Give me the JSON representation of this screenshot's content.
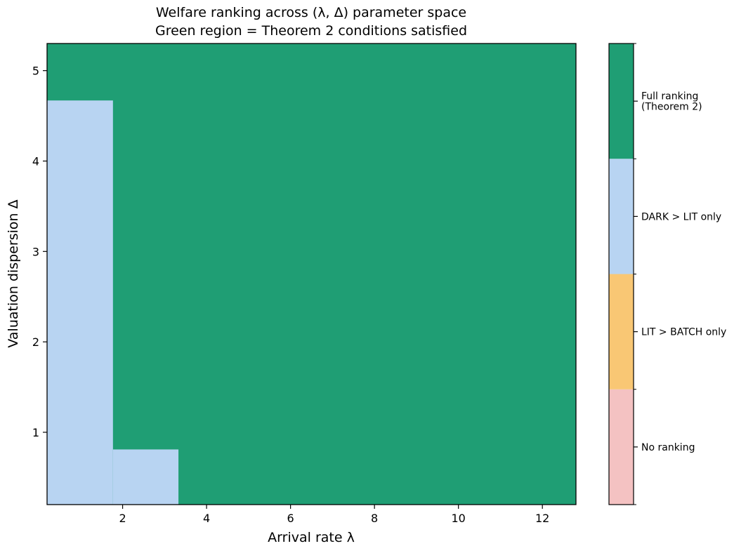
{
  "chart_data": {
    "type": "heatmap",
    "title_line1": "Welfare ranking across (λ, Δ) parameter space",
    "title_line2": "Green region = Theorem 2 conditions satisfied",
    "xlabel": "Arrival rate λ",
    "ylabel": "Valuation dispersion Δ",
    "xlim": [
      0.2,
      12.8
    ],
    "ylim": [
      0.2,
      5.3
    ],
    "x_ticks": [
      2,
      4,
      6,
      8,
      10,
      12
    ],
    "y_ticks": [
      1,
      2,
      3,
      4,
      5
    ],
    "grid": false,
    "categories": [
      {
        "value": 0,
        "label": "No ranking",
        "color": "#f4c2c2"
      },
      {
        "value": 1,
        "label": "LIT > BATCH only",
        "color": "#f9c774"
      },
      {
        "value": 2,
        "label": "DARK > LIT only",
        "color": "#b8d4f2"
      },
      {
        "value": 3,
        "label": "Full ranking (Theorem 2)",
        "color": "#1f9e74"
      }
    ],
    "regions": [
      {
        "x": [
          0.2,
          12.8
        ],
        "y": [
          0.2,
          5.3
        ],
        "category": 3
      },
      {
        "x": [
          0.2,
          1.77
        ],
        "y": [
          0.2,
          4.67
        ],
        "category": 2
      },
      {
        "x": [
          1.77,
          3.33
        ],
        "y": [
          0.2,
          0.81
        ],
        "category": 2
      }
    ]
  }
}
